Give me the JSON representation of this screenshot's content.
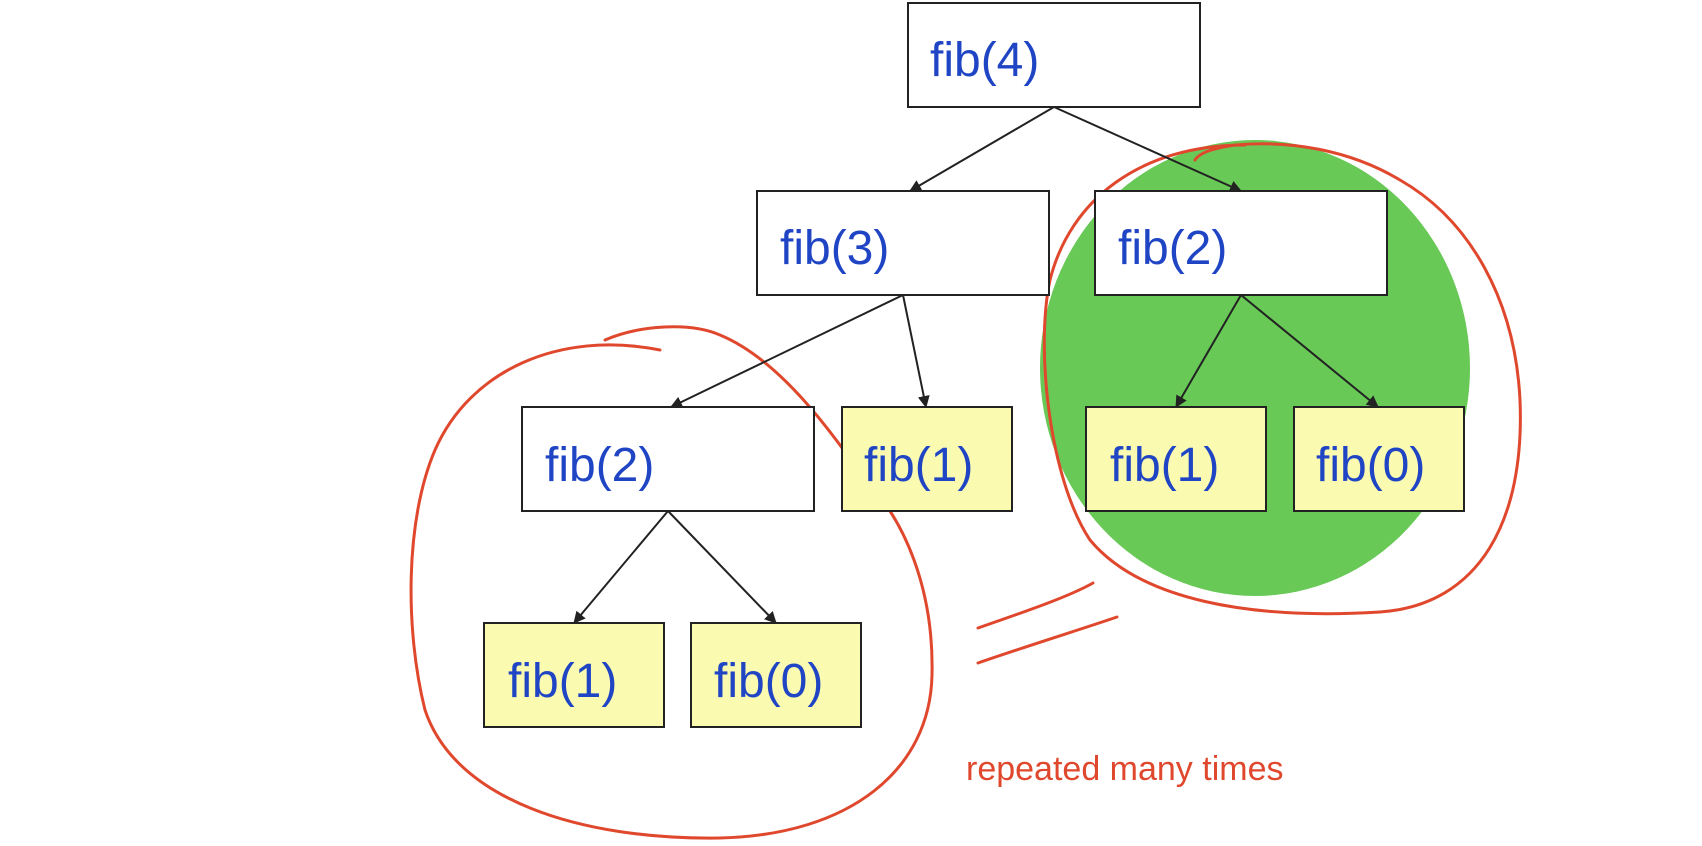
{
  "colors": {
    "text_blue": "#1f45c4",
    "leaf_fill": "#fafab0",
    "internal_fill": "#ffffff",
    "box_stroke": "#222222",
    "highlight_green": "#69c957",
    "annotation_red": "#e0482e"
  },
  "nodes": [
    {
      "id": "fib4",
      "label": "fib(4)",
      "leaf": false
    },
    {
      "id": "fib3",
      "label": "fib(3)",
      "leaf": false
    },
    {
      "id": "fib2_right",
      "label": "fib(2)",
      "leaf": false
    },
    {
      "id": "fib2_left",
      "label": "fib(2)",
      "leaf": false
    },
    {
      "id": "fib1_mid",
      "label": "fib(1)",
      "leaf": true
    },
    {
      "id": "fib1_right",
      "label": "fib(1)",
      "leaf": true
    },
    {
      "id": "fib0_right",
      "label": "fib(0)",
      "leaf": true
    },
    {
      "id": "fib1_left",
      "label": "fib(1)",
      "leaf": true
    },
    {
      "id": "fib0_left",
      "label": "fib(0)",
      "leaf": true
    }
  ],
  "edges": [
    {
      "from": "fib4",
      "to": "fib3"
    },
    {
      "from": "fib4",
      "to": "fib2_right"
    },
    {
      "from": "fib3",
      "to": "fib2_left"
    },
    {
      "from": "fib3",
      "to": "fib1_mid"
    },
    {
      "from": "fib2_right",
      "to": "fib1_right"
    },
    {
      "from": "fib2_right",
      "to": "fib0_right"
    },
    {
      "from": "fib2_left",
      "to": "fib1_left"
    },
    {
      "from": "fib2_left",
      "to": "fib0_left"
    }
  ],
  "annotation": {
    "text": "repeated many times"
  }
}
